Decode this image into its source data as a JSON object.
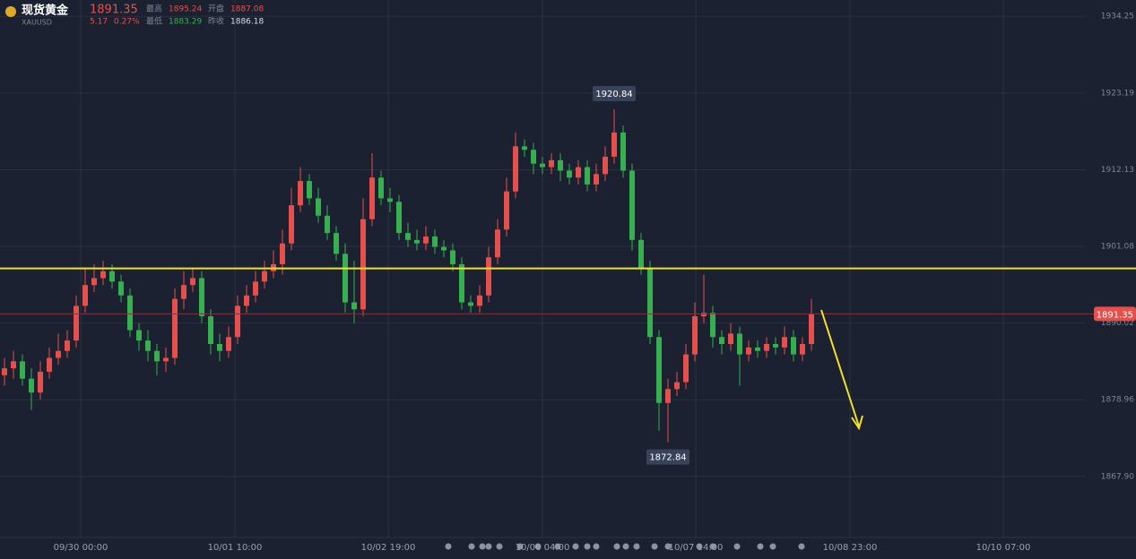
{
  "header": {
    "name": "现货黄金",
    "symbol": "XAUUSD",
    "price": "1891.35",
    "change": "5.17",
    "change_pct": "0.27%",
    "high_label": "最高",
    "high": "1895.24",
    "open_label": "开盘",
    "open": "1887.08",
    "low_label": "最低",
    "low": "1883.29",
    "prev_label": "昨收",
    "prev": "1886.18"
  },
  "chart_data": {
    "type": "candlestick",
    "up_color": "#e5504c",
    "down_color": "#36b04f",
    "open": [
      1882.5,
      1883.5,
      1884.5,
      1882.0,
      1880.0,
      1883.0,
      1885.0,
      1886.0,
      1887.5,
      1892.5,
      1895.5,
      1896.5,
      1897.5,
      1896.0,
      1894.0,
      1889.0,
      1887.5,
      1886.0,
      1884.5,
      1885.0,
      1893.5,
      1895.5,
      1896.5,
      1891.0,
      1887.0,
      1886.0,
      1888.0,
      1892.5,
      1894.0,
      1896.0,
      1897.5,
      1898.5,
      1901.5,
      1907.0,
      1910.5,
      1908.0,
      1905.5,
      1903.0,
      1900.0,
      1893.0,
      1892.0,
      1905.0,
      1911.0,
      1908.0,
      1907.5,
      1903.0,
      1902.0,
      1901.5,
      1902.5,
      1901.0,
      1900.5,
      1898.5,
      1893.0,
      1892.5,
      1894.0,
      1899.5,
      1903.5,
      1909.0,
      1915.5,
      1915.0,
      1913.0,
      1912.5,
      1913.5,
      1912.0,
      1911.0,
      1912.5,
      1910.0,
      1911.5,
      1914.0,
      1917.5,
      1912.0,
      1902.0,
      1898.0,
      1888.0,
      1878.5,
      1880.5,
      1881.5,
      1885.5,
      1891.0,
      1891.5,
      1888.0,
      1887.0,
      1888.5,
      1885.5,
      1886.5,
      1886.0,
      1887.0,
      1886.5,
      1888.0,
      1885.5,
      1887.0
    ],
    "high": [
      1885.0,
      1886.0,
      1885.5,
      1883.5,
      1884.5,
      1886.5,
      1888.5,
      1889.0,
      1894.0,
      1898.0,
      1898.5,
      1899.0,
      1898.5,
      1897.0,
      1895.0,
      1890.0,
      1889.0,
      1887.0,
      1886.5,
      1895.0,
      1897.5,
      1898.0,
      1897.5,
      1892.0,
      1888.5,
      1889.5,
      1894.0,
      1895.5,
      1897.5,
      1899.0,
      1900.5,
      1903.5,
      1909.5,
      1912.5,
      1911.5,
      1909.5,
      1907.0,
      1904.0,
      1901.5,
      1899.0,
      1908.0,
      1914.5,
      1912.0,
      1909.5,
      1908.5,
      1904.5,
      1903.5,
      1904.0,
      1903.5,
      1902.0,
      1901.5,
      1899.5,
      1894.0,
      1895.5,
      1901.0,
      1905.0,
      1911.0,
      1917.5,
      1916.5,
      1916.0,
      1914.0,
      1914.5,
      1914.5,
      1913.0,
      1913.5,
      1913.5,
      1913.0,
      1915.5,
      1920.84,
      1918.5,
      1913.0,
      1903.0,
      1899.0,
      1889.0,
      1882.0,
      1883.0,
      1887.0,
      1893.0,
      1897.0,
      1892.5,
      1889.0,
      1890.0,
      1889.5,
      1887.5,
      1887.5,
      1888.0,
      1888.0,
      1889.5,
      1889.0,
      1888.0,
      1893.5
    ],
    "low": [
      1881.0,
      1882.0,
      1881.0,
      1877.5,
      1879.0,
      1882.0,
      1884.0,
      1885.0,
      1886.5,
      1891.5,
      1894.5,
      1895.5,
      1895.0,
      1893.0,
      1888.0,
      1886.0,
      1884.5,
      1882.5,
      1883.0,
      1884.0,
      1892.0,
      1894.5,
      1890.0,
      1885.5,
      1884.5,
      1885.0,
      1887.0,
      1891.5,
      1893.0,
      1895.0,
      1896.5,
      1897.0,
      1900.5,
      1906.0,
      1907.0,
      1904.5,
      1902.0,
      1899.0,
      1891.5,
      1890.0,
      1891.0,
      1904.0,
      1907.0,
      1906.0,
      1902.0,
      1901.0,
      1900.5,
      1900.5,
      1900.0,
      1899.5,
      1897.5,
      1892.0,
      1891.5,
      1891.5,
      1893.0,
      1898.5,
      1902.5,
      1908.0,
      1914.0,
      1911.5,
      1911.5,
      1911.5,
      1910.5,
      1910.0,
      1910.0,
      1909.0,
      1909.0,
      1910.5,
      1913.0,
      1911.0,
      1900.5,
      1897.0,
      1887.0,
      1874.5,
      1872.84,
      1879.5,
      1880.5,
      1884.5,
      1890.0,
      1886.5,
      1885.5,
      1886.0,
      1881.0,
      1884.5,
      1885.0,
      1885.0,
      1885.5,
      1885.5,
      1884.5,
      1884.5,
      1886.0
    ],
    "close": [
      1883.5,
      1884.5,
      1882.0,
      1880.0,
      1883.0,
      1885.0,
      1886.0,
      1887.5,
      1892.5,
      1895.5,
      1896.5,
      1897.5,
      1896.0,
      1894.0,
      1889.0,
      1887.5,
      1886.0,
      1884.5,
      1885.0,
      1893.5,
      1895.5,
      1896.5,
      1891.0,
      1887.0,
      1886.0,
      1888.0,
      1892.5,
      1894.0,
      1896.0,
      1897.5,
      1898.5,
      1901.5,
      1907.0,
      1910.5,
      1908.0,
      1905.5,
      1903.0,
      1900.0,
      1893.0,
      1892.0,
      1905.0,
      1911.0,
      1908.0,
      1907.5,
      1903.0,
      1902.0,
      1901.5,
      1902.5,
      1901.0,
      1900.5,
      1898.5,
      1893.0,
      1892.5,
      1894.0,
      1899.5,
      1903.5,
      1909.0,
      1915.5,
      1915.0,
      1913.0,
      1912.5,
      1913.5,
      1912.0,
      1911.0,
      1912.5,
      1910.0,
      1911.5,
      1914.0,
      1917.5,
      1912.0,
      1902.0,
      1898.0,
      1888.0,
      1878.5,
      1880.5,
      1881.5,
      1885.5,
      1891.0,
      1891.5,
      1888.0,
      1887.0,
      1888.5,
      1885.5,
      1886.5,
      1886.0,
      1887.0,
      1886.5,
      1888.0,
      1885.5,
      1887.0,
      1891.35
    ],
    "peak_index": 68,
    "trough_index": 74,
    "hline": {
      "value": 1897.9,
      "color": "#f2e128"
    },
    "xlim": [
      -0.5,
      120.5
    ],
    "xticks": [
      {
        "value": 8.5,
        "label": "09/30 00:00"
      },
      {
        "value": 25.7,
        "label": "10/01 10:00"
      },
      {
        "value": 42.8,
        "label": "10/02 19:00"
      },
      {
        "value": 60.0,
        "label": "10/06 04:00"
      },
      {
        "value": 77.1,
        "label": "10/07 14:00"
      },
      {
        "value": 94.3,
        "label": "10/08 23:00"
      },
      {
        "value": 111.4,
        "label": "10/10 07:00"
      }
    ],
    "ylim": [
      1859.1,
      1936.6
    ],
    "yticks": [
      1934.25,
      1923.19,
      1912.13,
      1901.08,
      1890.02,
      1878.96,
      {
        "value": 1867.9,
        "label": "1867.90"
      }
    ],
    "grid": true
  }
}
